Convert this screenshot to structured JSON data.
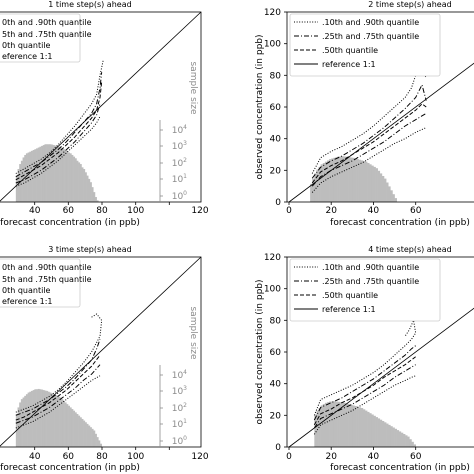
{
  "figure": {
    "colors": {
      "axis": "#000000",
      "histogram": "#bdbdbd",
      "size_axis": "#8c8c8c",
      "reference": "#000000"
    }
  },
  "chart_data": [
    {
      "type": "line",
      "title": "1 time step(s) ahead",
      "xlabel": "forecast concentration (in ppb)",
      "ylabel": "",
      "size_axis_label": "sample size",
      "xlim": [
        0,
        120
      ],
      "ylim": [
        0,
        120
      ],
      "x_ticks": [
        "40",
        "60",
        "80",
        "100",
        "120"
      ],
      "y_ticks": [],
      "size_ticks": [
        "10",
        "10",
        "10",
        "10",
        "10"
      ],
      "size_tick_exponents": [
        "0",
        "1",
        "2",
        "3",
        "4"
      ],
      "legend": {
        "placement": "top-left",
        "entries": [
          "0th and .90th quantile",
          "5th and .75th quantile",
          "0th quantile",
          "eference 1:1"
        ]
      },
      "histogram": {
        "x_start": 10,
        "bin_width": 1,
        "log10_counts": [
          1.6,
          2.0,
          2.3,
          2.5,
          2.7,
          2.85,
          2.95,
          3.0,
          3.05,
          3.1,
          3.15,
          3.2,
          3.25,
          3.3,
          3.35,
          3.4,
          3.45,
          3.5,
          3.5,
          3.5,
          3.5,
          3.48,
          3.45,
          3.42,
          3.4,
          3.35,
          3.3,
          3.25,
          3.2,
          3.15,
          3.1,
          3.0,
          2.95,
          2.85,
          2.75,
          2.65,
          2.5,
          2.4,
          2.3,
          2.1,
          2.0,
          1.8,
          1.6,
          1.4,
          1.2,
          0.9,
          0.6,
          0.3,
          0.1
        ]
      },
      "series": [
        {
          "label": "q10",
          "style": "dotted",
          "x": [
            10,
            15,
            20,
            25,
            30,
            35,
            40,
            45,
            50,
            55,
            58,
            60
          ],
          "y": [
            10,
            12,
            15,
            18,
            22,
            26,
            31,
            36,
            41,
            46,
            50,
            54
          ]
        },
        {
          "label": "q90",
          "style": "dotted",
          "x": [
            10,
            15,
            20,
            25,
            30,
            35,
            40,
            45,
            50,
            55,
            58,
            60,
            62
          ],
          "y": [
            18,
            21,
            24,
            27,
            31,
            36,
            42,
            48,
            55,
            62,
            68,
            80,
            90
          ]
        },
        {
          "label": "q25",
          "style": "dashdot",
          "x": [
            10,
            15,
            20,
            25,
            30,
            35,
            40,
            45,
            50,
            55,
            58,
            60
          ],
          "y": [
            12,
            14,
            17,
            20,
            24,
            28,
            33,
            38,
            44,
            50,
            55,
            62
          ]
        },
        {
          "label": "q75",
          "style": "dashdot",
          "x": [
            10,
            15,
            20,
            25,
            30,
            35,
            40,
            45,
            50,
            55,
            58,
            60,
            61
          ],
          "y": [
            16,
            19,
            22,
            25,
            29,
            33,
            38,
            44,
            50,
            56,
            62,
            72,
            82
          ]
        },
        {
          "label": "q50",
          "style": "dashed",
          "x": [
            10,
            15,
            20,
            25,
            30,
            35,
            40,
            45,
            50,
            55,
            58,
            60,
            61
          ],
          "y": [
            14,
            17,
            20,
            23,
            27,
            31,
            36,
            41,
            47,
            53,
            58,
            66,
            76
          ]
        }
      ]
    },
    {
      "type": "line",
      "title": "2 time step(s) ahead",
      "xlabel": "forecast concentration (in ppb)",
      "ylabel": "observed concentration (in ppb)",
      "size_axis_label": "",
      "xlim": [
        0,
        90
      ],
      "ylim": [
        0,
        120
      ],
      "x_ticks": [
        "0",
        "20",
        "40",
        "60"
      ],
      "y_ticks": [
        "0",
        "20",
        "40",
        "60",
        "80",
        "100",
        "120"
      ],
      "size_ticks": [],
      "size_tick_exponents": [],
      "legend": {
        "placement": "top-left",
        "entries": [
          ".10th and .90th quantile",
          ".25th and .75th quantile",
          ".50th quantile",
          "reference 1:1"
        ]
      },
      "histogram": {
        "x_start": 10,
        "bin_width": 1,
        "log10_counts": [
          1.4,
          1.8,
          2.2,
          2.5,
          2.7,
          2.9,
          3.0,
          3.1,
          3.2,
          3.3,
          3.35,
          3.4,
          3.45,
          3.5,
          3.5,
          3.52,
          3.5,
          3.48,
          3.45,
          3.42,
          3.4,
          3.35,
          3.3,
          3.25,
          3.2,
          3.15,
          3.1,
          3.0,
          2.9,
          2.8,
          2.7,
          2.6,
          2.4,
          2.2,
          2.0,
          1.8,
          1.5,
          1.2,
          0.9,
          0.6,
          0.3
        ]
      },
      "series": [
        {
          "label": "q10",
          "style": "dotted",
          "x": [
            11,
            15,
            20,
            25,
            30,
            35,
            40,
            45,
            50,
            55,
            60,
            65
          ],
          "y": [
            6,
            12,
            16,
            19,
            22,
            25,
            29,
            33,
            37,
            40,
            44,
            47
          ]
        },
        {
          "label": "q90",
          "style": "dotted",
          "x": [
            11,
            15,
            20,
            25,
            30,
            35,
            40,
            45,
            50,
            55,
            58,
            60,
            63,
            65
          ],
          "y": [
            18,
            28,
            32,
            35,
            39,
            43,
            48,
            54,
            60,
            66,
            72,
            80,
            85,
            78
          ]
        },
        {
          "label": "q25",
          "style": "dashdot",
          "x": [
            11,
            15,
            20,
            25,
            30,
            35,
            40,
            45,
            50,
            55,
            60,
            65
          ],
          "y": [
            10,
            16,
            20,
            23,
            26,
            30,
            34,
            38,
            43,
            48,
            52,
            56
          ]
        },
        {
          "label": "q75",
          "style": "dashdot",
          "x": [
            11,
            15,
            20,
            25,
            30,
            35,
            40,
            45,
            50,
            55,
            60,
            63,
            65
          ],
          "y": [
            15,
            22,
            26,
            29,
            33,
            37,
            42,
            47,
            53,
            59,
            66,
            74,
            64
          ]
        },
        {
          "label": "q50",
          "style": "dashed",
          "x": [
            11,
            15,
            20,
            25,
            30,
            35,
            40,
            45,
            50,
            55,
            60,
            63,
            65
          ],
          "y": [
            12,
            19,
            23,
            26,
            30,
            34,
            38,
            43,
            48,
            53,
            58,
            62,
            60
          ]
        }
      ]
    },
    {
      "type": "line",
      "title": "3 time step(s) ahead",
      "xlabel": "forecast concentration (in ppb)",
      "ylabel": "",
      "size_axis_label": "sample size",
      "xlim": [
        0,
        120
      ],
      "ylim": [
        0,
        120
      ],
      "x_ticks": [
        "40",
        "60",
        "80",
        "100",
        "120"
      ],
      "y_ticks": [],
      "size_ticks": [
        "10",
        "10",
        "10",
        "10",
        "10"
      ],
      "size_tick_exponents": [
        "0",
        "1",
        "2",
        "3",
        "4"
      ],
      "legend": {
        "placement": "top-left",
        "entries": [
          "0th and .90th quantile",
          "5th and .75th quantile",
          "0th quantile",
          "eference 1:1"
        ]
      },
      "histogram": {
        "x_start": 10,
        "bin_width": 1,
        "log10_counts": [
          2.0,
          2.4,
          2.7,
          2.9,
          3.0,
          3.1,
          3.2,
          3.3,
          3.35,
          3.4,
          3.45,
          3.5,
          3.5,
          3.52,
          3.5,
          3.48,
          3.45,
          3.42,
          3.4,
          3.35,
          3.3,
          3.25,
          3.2,
          3.15,
          3.1,
          3.05,
          3.0,
          2.9,
          2.8,
          2.7,
          2.6,
          2.5,
          2.4,
          2.3,
          2.2,
          2.1,
          2.0,
          1.9,
          1.8,
          1.7,
          1.6,
          1.5,
          1.4,
          1.3,
          1.2,
          1.1,
          1.0,
          0.8,
          0.6,
          0.4,
          0.2
        ]
      },
      "series": [
        {
          "label": "q10",
          "style": "dotted",
          "x": [
            10,
            15,
            20,
            25,
            30,
            35,
            40,
            45,
            50,
            55,
            60
          ],
          "y": [
            12,
            14,
            16,
            19,
            22,
            26,
            30,
            34,
            38,
            42,
            45
          ]
        },
        {
          "label": "q90",
          "style": "dotted",
          "x": [
            10,
            15,
            20,
            25,
            30,
            35,
            40,
            45,
            50,
            55,
            58,
            60,
            61,
            58,
            55
          ],
          "y": [
            22,
            24,
            26,
            29,
            32,
            36,
            41,
            47,
            53,
            60,
            66,
            70,
            80,
            84,
            82
          ]
        },
        {
          "label": "q25",
          "style": "dashdot",
          "x": [
            10,
            15,
            20,
            25,
            30,
            35,
            40,
            45,
            50,
            55,
            60
          ],
          "y": [
            15,
            17,
            19,
            22,
            25,
            29,
            33,
            37,
            42,
            46,
            52
          ]
        },
        {
          "label": "q75",
          "style": "dashdot",
          "x": [
            10,
            15,
            20,
            25,
            30,
            35,
            40,
            45,
            50,
            55,
            58,
            60
          ],
          "y": [
            20,
            22,
            24,
            27,
            30,
            34,
            38,
            43,
            49,
            55,
            62,
            68
          ]
        },
        {
          "label": "q50",
          "style": "dashed",
          "x": [
            10,
            15,
            20,
            25,
            30,
            35,
            40,
            45,
            50,
            55,
            60
          ],
          "y": [
            17,
            19,
            22,
            25,
            28,
            32,
            36,
            41,
            46,
            51,
            58
          ]
        }
      ]
    },
    {
      "type": "line",
      "title": "4 time step(s) ahead",
      "xlabel": "forecast concentration (in ppb)",
      "ylabel": "observed concentration (in ppb)",
      "size_axis_label": "",
      "xlim": [
        0,
        90
      ],
      "ylim": [
        0,
        120
      ],
      "x_ticks": [
        "0",
        "20",
        "40",
        "60"
      ],
      "y_ticks": [
        "0",
        "20",
        "40",
        "60",
        "80",
        "100",
        "120"
      ],
      "size_ticks": [],
      "size_tick_exponents": [],
      "legend": {
        "placement": "top-left",
        "entries": [
          ".10th and .90th quantile",
          ".25th and .75th quantile",
          ".50th quantile",
          "reference 1:1"
        ]
      },
      "histogram": {
        "x_start": 12,
        "bin_width": 1,
        "log10_counts": [
          2.5,
          2.8,
          3.0,
          3.2,
          3.3,
          3.4,
          3.45,
          3.5,
          3.5,
          3.52,
          3.5,
          3.48,
          3.45,
          3.42,
          3.4,
          3.35,
          3.3,
          3.25,
          3.2,
          3.15,
          3.1,
          3.05,
          3.0,
          2.9,
          2.8,
          2.7,
          2.6,
          2.5,
          2.4,
          2.3,
          2.2,
          2.1,
          2.0,
          1.9,
          1.8,
          1.7,
          1.6,
          1.5,
          1.4,
          1.3,
          1.2,
          1.1,
          1.0,
          0.9,
          0.8,
          0.6,
          0.4,
          0.2
        ]
      },
      "series": [
        {
          "label": "q10",
          "style": "dotted",
          "x": [
            12,
            15,
            20,
            25,
            30,
            35,
            40,
            45,
            50,
            55,
            58,
            60
          ],
          "y": [
            8,
            14,
            17,
            20,
            23,
            27,
            31,
            35,
            39,
            42,
            44,
            45
          ]
        },
        {
          "label": "q90",
          "style": "dotted",
          "x": [
            12,
            15,
            20,
            25,
            30,
            35,
            40,
            45,
            50,
            55,
            58,
            60,
            59,
            57,
            55
          ],
          "y": [
            20,
            30,
            33,
            36,
            39,
            43,
            47,
            52,
            58,
            64,
            68,
            72,
            80,
            74,
            70
          ]
        },
        {
          "label": "q25",
          "style": "dashdot",
          "x": [
            12,
            15,
            20,
            25,
            30,
            35,
            40,
            45,
            50,
            55,
            60
          ],
          "y": [
            12,
            18,
            21,
            24,
            27,
            31,
            35,
            39,
            44,
            48,
            52
          ]
        },
        {
          "label": "q75",
          "style": "dashdot",
          "x": [
            12,
            15,
            20,
            25,
            30,
            35,
            40,
            45,
            50,
            55,
            58,
            60
          ],
          "y": [
            17,
            25,
            28,
            31,
            35,
            39,
            43,
            48,
            53,
            58,
            62,
            64
          ]
        },
        {
          "label": "q50",
          "style": "dashed",
          "x": [
            12,
            15,
            20,
            25,
            30,
            35,
            40,
            45,
            50,
            55,
            60
          ],
          "y": [
            14,
            21,
            24,
            28,
            31,
            35,
            39,
            44,
            48,
            52,
            57
          ]
        }
      ]
    }
  ]
}
